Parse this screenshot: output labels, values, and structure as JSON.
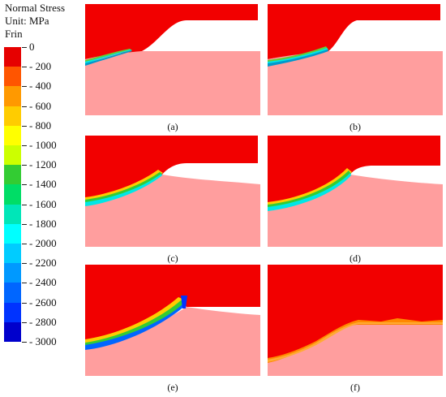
{
  "legend": {
    "title_lines": [
      "Normal Stress",
      "Unit: MPa",
      "Frin"
    ],
    "levels": [
      {
        "label": "0",
        "color": "#e60000"
      },
      {
        "label": "- 200",
        "color": "#ff5500"
      },
      {
        "label": "- 400",
        "color": "#ff9900"
      },
      {
        "label": "- 600",
        "color": "#ffcc00"
      },
      {
        "label": "- 800",
        "color": "#ffff00"
      },
      {
        "label": "- 1000",
        "color": "#ccff00"
      },
      {
        "label": "- 1200",
        "color": "#33cc33"
      },
      {
        "label": "- 1400",
        "color": "#00dd66"
      },
      {
        "label": "- 1600",
        "color": "#00e6b8"
      },
      {
        "label": "- 1800",
        "color": "#00ffff"
      },
      {
        "label": "- 2000",
        "color": "#00ccff"
      },
      {
        "label": "- 2200",
        "color": "#0099ff"
      },
      {
        "label": "- 2400",
        "color": "#0066ff"
      },
      {
        "label": "- 2600",
        "color": "#0033ff"
      },
      {
        "label": "- 2800",
        "color": "#0000cc"
      },
      {
        "label": "- 3000",
        "color": ""
      }
    ]
  },
  "colors": {
    "chip": "#f20000",
    "workpiece": "#ff9e9e",
    "background": "#ffffff"
  },
  "panels": [
    {
      "caption": "(a)",
      "band": [
        "#66cc33",
        "#00e6e6",
        "#0099cc"
      ]
    },
    {
      "caption": "(b)",
      "band": [
        "#66cc33",
        "#00e6e6",
        "#0099cc"
      ]
    },
    {
      "caption": "(c)",
      "band": [
        "#ffcc00",
        "#33cc33",
        "#00e6e6"
      ]
    },
    {
      "caption": "(d)",
      "band": [
        "#ffcc00",
        "#33cc33",
        "#00e6e6"
      ]
    },
    {
      "caption": "(e)",
      "band": [
        "#ffcc00",
        "#33cc33",
        "#0066ff"
      ]
    },
    {
      "caption": "(f)",
      "band": [
        "#ff8800",
        "#ffaa33",
        "#ff8800"
      ]
    }
  ]
}
